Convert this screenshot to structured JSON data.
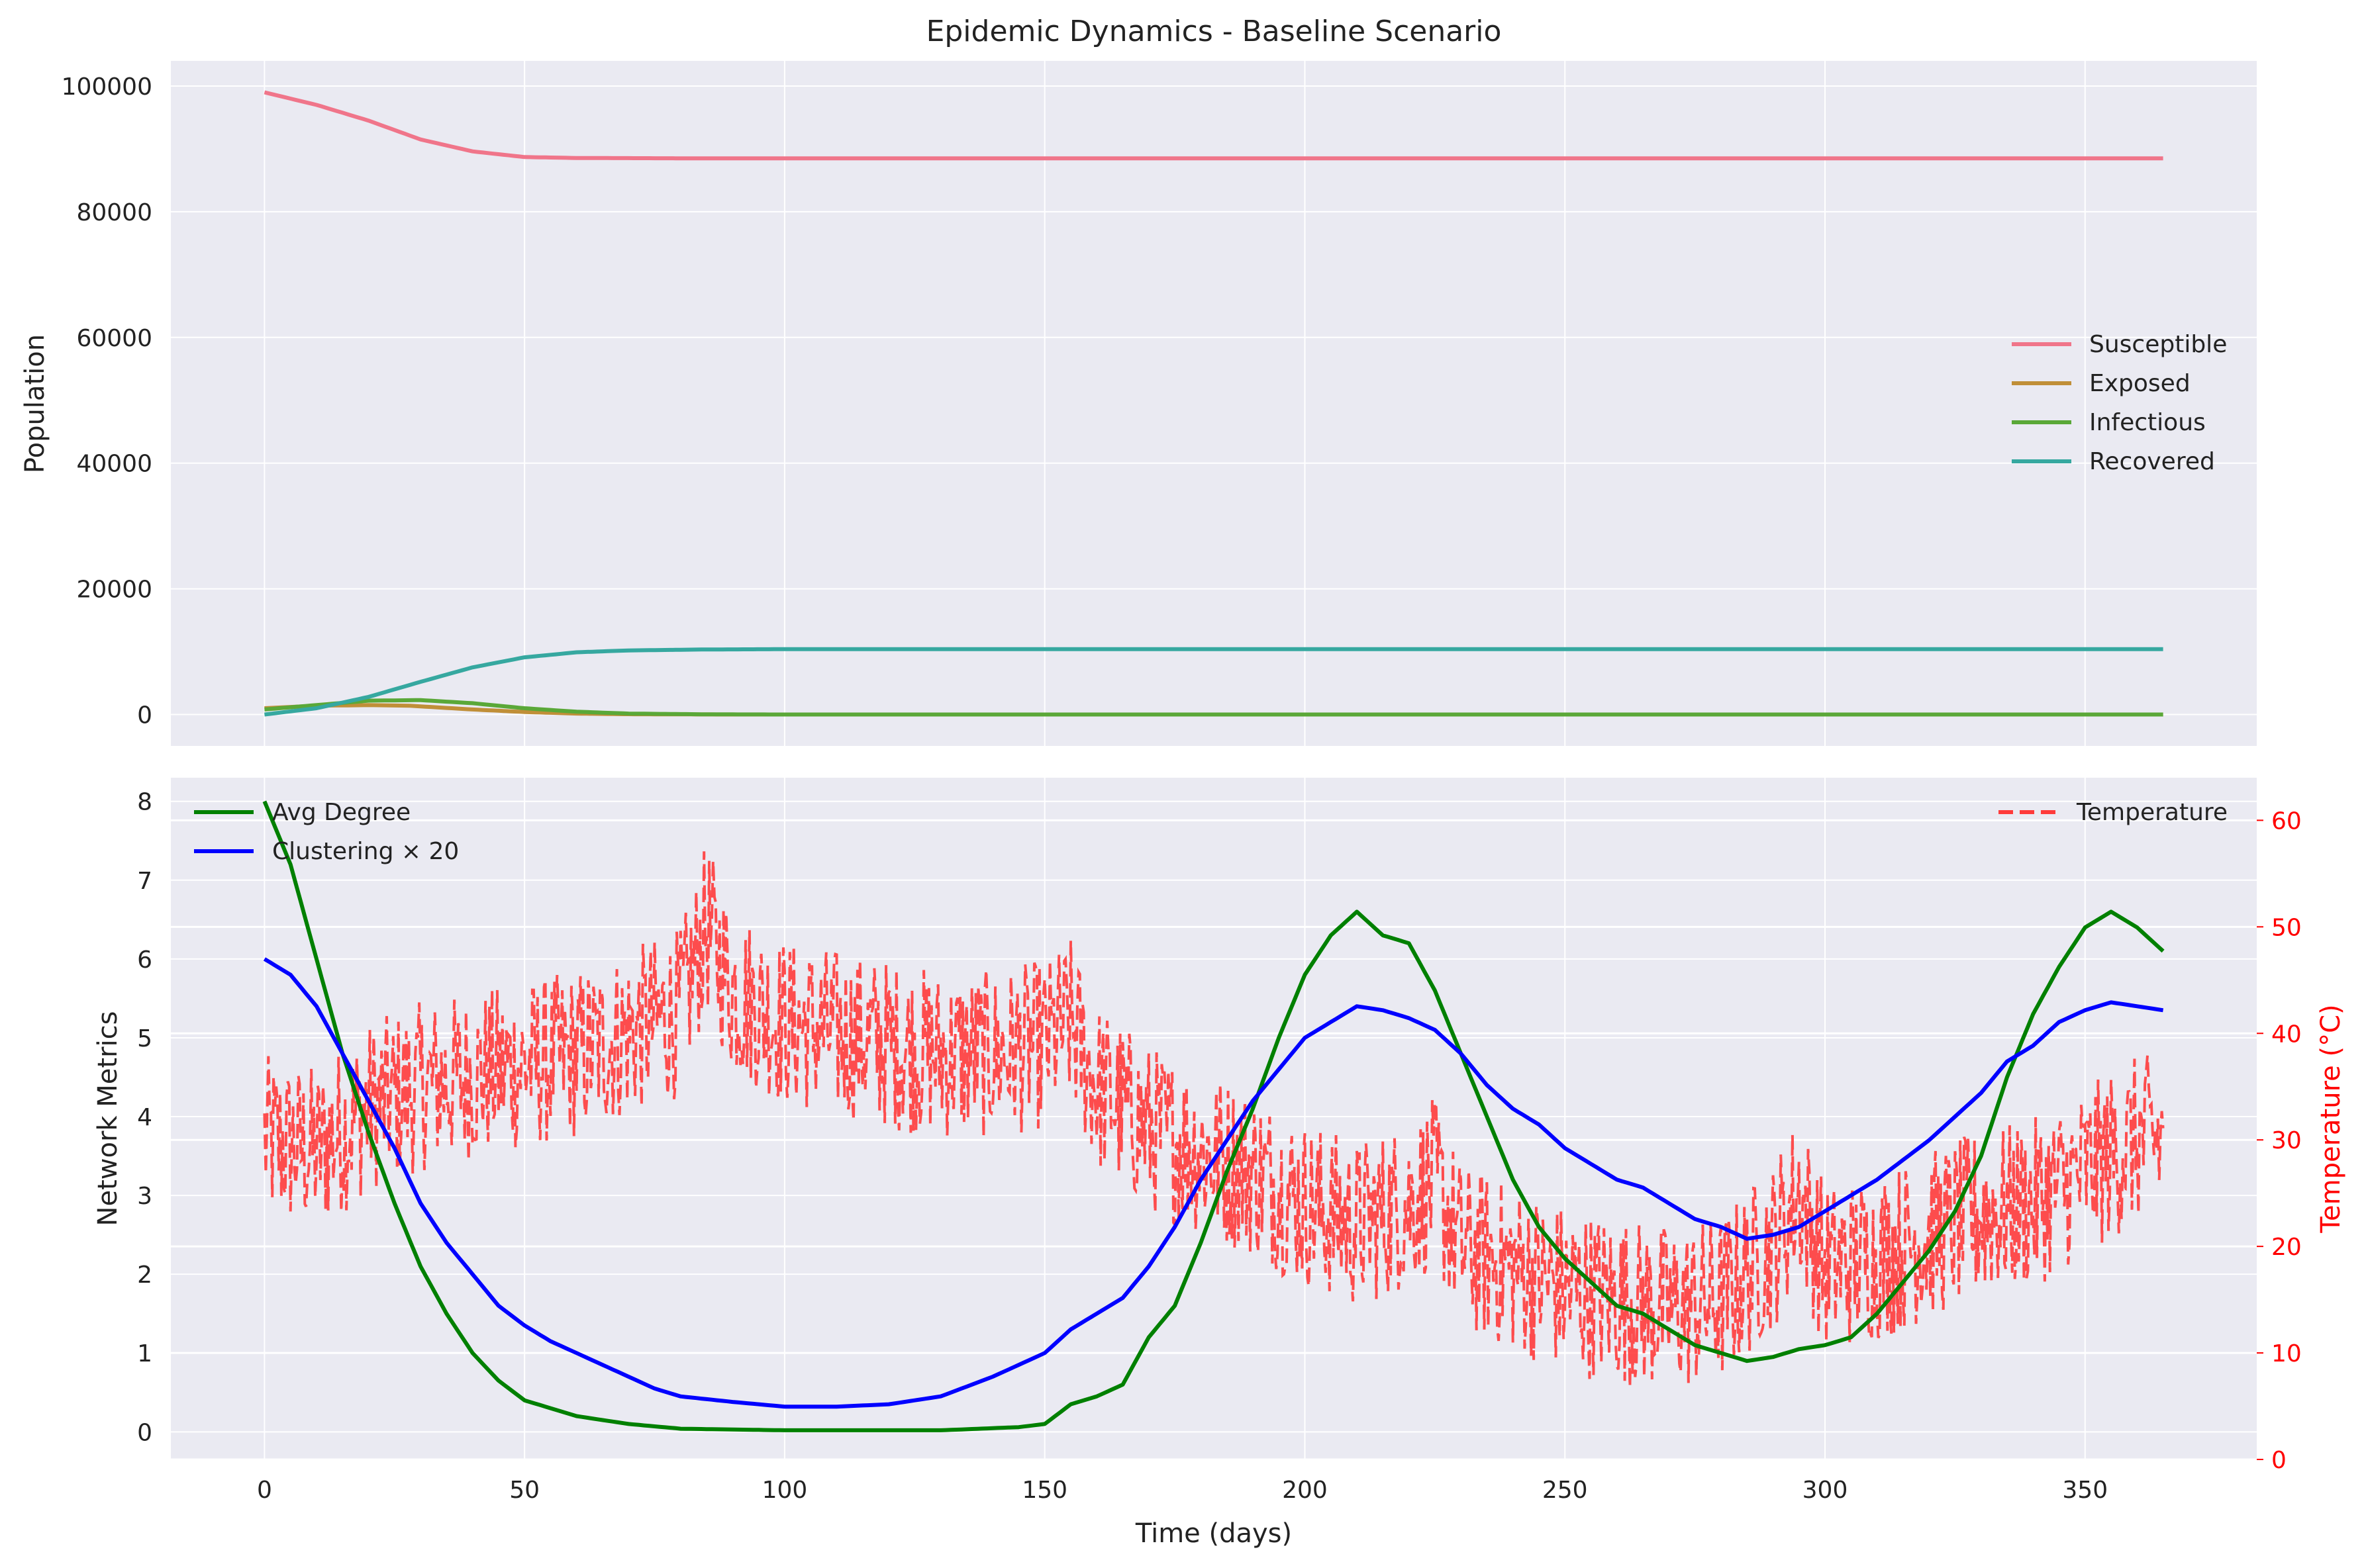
{
  "chart_data": [
    {
      "type": "line",
      "title": "Epidemic Dynamics - Baseline Scenario",
      "xlabel": "",
      "ylabel": "Population",
      "xlim": [
        -18,
        383
      ],
      "ylim": [
        -5000,
        104000
      ],
      "grid": true,
      "legend_position": "center-right",
      "xticks": [
        0,
        50,
        100,
        150,
        200,
        250,
        300,
        350
      ],
      "yticks": [
        0,
        20000,
        40000,
        60000,
        80000,
        100000
      ],
      "series": [
        {
          "name": "Susceptible",
          "color": "#f0758a",
          "points": [
            [
              0,
              99000
            ],
            [
              10,
              97000
            ],
            [
              20,
              94500
            ],
            [
              30,
              91500
            ],
            [
              40,
              89600
            ],
            [
              50,
              88700
            ],
            [
              60,
              88550
            ],
            [
              80,
              88500
            ],
            [
              120,
              88500
            ],
            [
              200,
              88500
            ],
            [
              300,
              88500
            ],
            [
              365,
              88500
            ]
          ]
        },
        {
          "name": "Exposed",
          "color": "#c08f38",
          "points": [
            [
              0,
              1000
            ],
            [
              10,
              1400
            ],
            [
              20,
              1500
            ],
            [
              28,
              1400
            ],
            [
              40,
              800
            ],
            [
              50,
              400
            ],
            [
              60,
              150
            ],
            [
              70,
              50
            ],
            [
              90,
              0
            ],
            [
              365,
              0
            ]
          ]
        },
        {
          "name": "Infectious",
          "color": "#5aa838",
          "points": [
            [
              0,
              800
            ],
            [
              10,
              1500
            ],
            [
              20,
              2200
            ],
            [
              30,
              2300
            ],
            [
              40,
              1800
            ],
            [
              50,
              1000
            ],
            [
              60,
              450
            ],
            [
              70,
              150
            ],
            [
              85,
              30
            ],
            [
              100,
              0
            ],
            [
              365,
              0
            ]
          ]
        },
        {
          "name": "Recovered",
          "color": "#36a8a0",
          "points": [
            [
              0,
              0
            ],
            [
              10,
              1000
            ],
            [
              20,
              2800
            ],
            [
              30,
              5200
            ],
            [
              40,
              7500
            ],
            [
              50,
              9100
            ],
            [
              60,
              9900
            ],
            [
              70,
              10200
            ],
            [
              85,
              10350
            ],
            [
              100,
              10400
            ],
            [
              365,
              10400
            ]
          ]
        }
      ]
    },
    {
      "type": "line",
      "title": "",
      "xlabel": "Time (days)",
      "ylabel": "Network Metrics",
      "y2label": "Temperature (°C)",
      "xlim": [
        -18,
        383
      ],
      "ylim": [
        -0.35,
        8.3
      ],
      "y2lim": [
        0,
        64
      ],
      "grid": true,
      "legend_position": "top-left",
      "legend2_position": "top-right",
      "xticks": [
        0,
        50,
        100,
        150,
        200,
        250,
        300,
        350
      ],
      "yticks": [
        0,
        1,
        2,
        3,
        4,
        5,
        6,
        7,
        8
      ],
      "y2ticks": [
        0,
        10,
        20,
        30,
        40,
        50,
        60
      ],
      "series": [
        {
          "name": "Avg Degree",
          "color": "#008000",
          "axis": "left",
          "points": [
            [
              0,
              8.0
            ],
            [
              5,
              7.2
            ],
            [
              10,
              6.0
            ],
            [
              15,
              4.8
            ],
            [
              20,
              3.8
            ],
            [
              25,
              2.9
            ],
            [
              30,
              2.1
            ],
            [
              35,
              1.5
            ],
            [
              40,
              1.0
            ],
            [
              45,
              0.65
            ],
            [
              50,
              0.4
            ],
            [
              60,
              0.2
            ],
            [
              70,
              0.1
            ],
            [
              80,
              0.04
            ],
            [
              100,
              0.02
            ],
            [
              130,
              0.02
            ],
            [
              145,
              0.06
            ],
            [
              150,
              0.1
            ],
            [
              155,
              0.35
            ],
            [
              160,
              0.45
            ],
            [
              165,
              0.6
            ],
            [
              170,
              1.2
            ],
            [
              175,
              1.6
            ],
            [
              180,
              2.4
            ],
            [
              185,
              3.3
            ],
            [
              190,
              4.1
            ],
            [
              195,
              5.0
            ],
            [
              200,
              5.8
            ],
            [
              205,
              6.3
            ],
            [
              210,
              6.6
            ],
            [
              215,
              6.3
            ],
            [
              220,
              6.2
            ],
            [
              225,
              5.6
            ],
            [
              230,
              4.8
            ],
            [
              235,
              4.0
            ],
            [
              240,
              3.2
            ],
            [
              245,
              2.6
            ],
            [
              250,
              2.2
            ],
            [
              255,
              1.9
            ],
            [
              260,
              1.6
            ],
            [
              265,
              1.5
            ],
            [
              270,
              1.3
            ],
            [
              275,
              1.1
            ],
            [
              280,
              1.0
            ],
            [
              285,
              0.9
            ],
            [
              290,
              0.95
            ],
            [
              295,
              1.05
            ],
            [
              300,
              1.1
            ],
            [
              305,
              1.2
            ],
            [
              310,
              1.5
            ],
            [
              315,
              1.9
            ],
            [
              320,
              2.3
            ],
            [
              325,
              2.8
            ],
            [
              330,
              3.5
            ],
            [
              335,
              4.5
            ],
            [
              340,
              5.3
            ],
            [
              345,
              5.9
            ],
            [
              350,
              6.4
            ],
            [
              355,
              6.6
            ],
            [
              360,
              6.4
            ],
            [
              365,
              6.1
            ]
          ]
        },
        {
          "name": "Clustering × 20",
          "color": "#0000ff",
          "axis": "left",
          "points": [
            [
              0,
              6.0
            ],
            [
              5,
              5.8
            ],
            [
              10,
              5.4
            ],
            [
              15,
              4.8
            ],
            [
              20,
              4.2
            ],
            [
              25,
              3.6
            ],
            [
              30,
              2.9
            ],
            [
              35,
              2.4
            ],
            [
              40,
              2.0
            ],
            [
              45,
              1.6
            ],
            [
              50,
              1.35
            ],
            [
              55,
              1.15
            ],
            [
              60,
              1.0
            ],
            [
              65,
              0.85
            ],
            [
              70,
              0.7
            ],
            [
              75,
              0.55
            ],
            [
              80,
              0.45
            ],
            [
              90,
              0.38
            ],
            [
              100,
              0.32
            ],
            [
              110,
              0.32
            ],
            [
              120,
              0.35
            ],
            [
              130,
              0.45
            ],
            [
              140,
              0.7
            ],
            [
              150,
              1.0
            ],
            [
              155,
              1.3
            ],
            [
              160,
              1.5
            ],
            [
              165,
              1.7
            ],
            [
              170,
              2.1
            ],
            [
              175,
              2.6
            ],
            [
              180,
              3.2
            ],
            [
              185,
              3.7
            ],
            [
              190,
              4.2
            ],
            [
              195,
              4.6
            ],
            [
              200,
              5.0
            ],
            [
              205,
              5.2
            ],
            [
              210,
              5.4
            ],
            [
              215,
              5.35
            ],
            [
              220,
              5.25
            ],
            [
              225,
              5.1
            ],
            [
              230,
              4.8
            ],
            [
              235,
              4.4
            ],
            [
              240,
              4.1
            ],
            [
              245,
              3.9
            ],
            [
              250,
              3.6
            ],
            [
              255,
              3.4
            ],
            [
              260,
              3.2
            ],
            [
              265,
              3.1
            ],
            [
              270,
              2.9
            ],
            [
              275,
              2.7
            ],
            [
              280,
              2.6
            ],
            [
              285,
              2.45
            ],
            [
              290,
              2.5
            ],
            [
              295,
              2.6
            ],
            [
              300,
              2.8
            ],
            [
              305,
              3.0
            ],
            [
              310,
              3.2
            ],
            [
              315,
              3.45
            ],
            [
              320,
              3.7
            ],
            [
              325,
              4.0
            ],
            [
              330,
              4.3
            ],
            [
              335,
              4.7
            ],
            [
              340,
              4.9
            ],
            [
              345,
              5.2
            ],
            [
              350,
              5.35
            ],
            [
              355,
              5.45
            ],
            [
              360,
              5.4
            ],
            [
              365,
              5.35
            ]
          ]
        },
        {
          "name": "Temperature",
          "color": "#ff3b3b",
          "axis": "right",
          "style": "dashed",
          "noisy": true,
          "noise_amplitude": 8,
          "points": [
            [
              0,
              30
            ],
            [
              10,
              29
            ],
            [
              20,
              33
            ],
            [
              30,
              35
            ],
            [
              40,
              36
            ],
            [
              50,
              37
            ],
            [
              60,
              38
            ],
            [
              70,
              40
            ],
            [
              80,
              42
            ],
            [
              85,
              50
            ],
            [
              90,
              44
            ],
            [
              100,
              41
            ],
            [
              110,
              40
            ],
            [
              120,
              39
            ],
            [
              130,
              38
            ],
            [
              140,
              38
            ],
            [
              150,
              39
            ],
            [
              155,
              41
            ],
            [
              160,
              35
            ],
            [
              170,
              31
            ],
            [
              180,
              29
            ],
            [
              190,
              27
            ],
            [
              200,
              24
            ],
            [
              210,
              22
            ],
            [
              220,
              24
            ],
            [
              225,
              26
            ],
            [
              230,
              20
            ],
            [
              240,
              18
            ],
            [
              250,
              16
            ],
            [
              260,
              15
            ],
            [
              270,
              14
            ],
            [
              280,
              15
            ],
            [
              290,
              20
            ],
            [
              295,
              25
            ],
            [
              300,
              18
            ],
            [
              310,
              19
            ],
            [
              320,
              21
            ],
            [
              330,
              23
            ],
            [
              340,
              24
            ],
            [
              350,
              27
            ],
            [
              360,
              30
            ],
            [
              365,
              30
            ]
          ]
        }
      ]
    }
  ]
}
